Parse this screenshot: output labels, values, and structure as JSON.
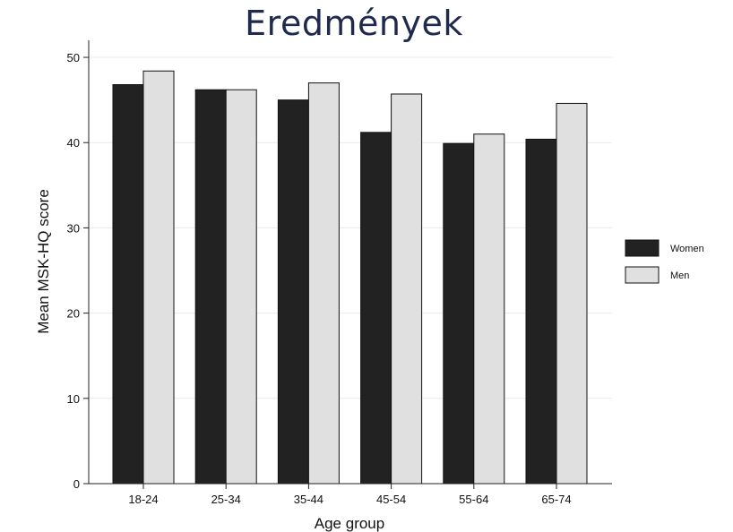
{
  "slide": {
    "title": "Eredmények"
  },
  "chart_data": {
    "type": "bar",
    "xlabel": "Age group",
    "ylabel": "Mean MSK-HQ score",
    "ylim": [
      0,
      52
    ],
    "yticks": [
      0,
      10,
      20,
      30,
      40,
      50
    ],
    "grid": true,
    "legend_position": "right",
    "categories": [
      "18-24",
      "25-34",
      "35-44",
      "45-54",
      "55-64",
      "65-74"
    ],
    "series": [
      {
        "name": "Women",
        "color": "#222222",
        "values": [
          46.8,
          46.2,
          45.0,
          41.2,
          39.9,
          40.4
        ]
      },
      {
        "name": "Men",
        "color": "#e0e0e0",
        "values": [
          48.4,
          46.2,
          47.0,
          45.7,
          41.0,
          44.6
        ]
      }
    ]
  }
}
